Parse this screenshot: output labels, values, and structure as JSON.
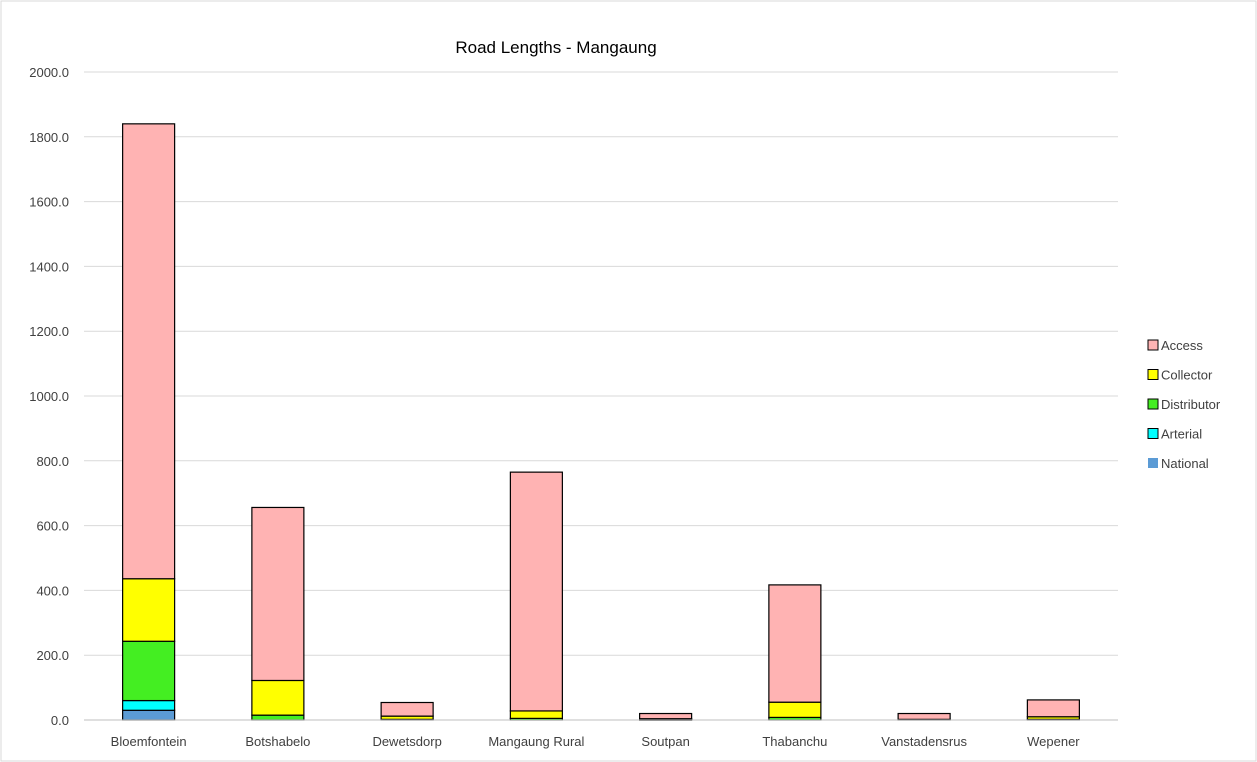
{
  "chart_data": {
    "type": "bar",
    "stacked": true,
    "title": "Road Lengths - Mangaung",
    "xlabel": "",
    "ylabel": "",
    "ylim": [
      0,
      2000
    ],
    "yticks": [
      "0.0",
      "200.0",
      "400.0",
      "600.0",
      "800.0",
      "1000.0",
      "1200.0",
      "1400.0",
      "1600.0",
      "1800.0",
      "2000.0"
    ],
    "grid": true,
    "legend_position": "right",
    "categories": [
      "Bloemfontein",
      "Botshabelo",
      "Dewetsdorp",
      "Mangaung Rural",
      "Soutpan",
      "Thabanchu",
      "Vanstadensrus",
      "Wepener"
    ],
    "series": [
      {
        "name": "National",
        "color": "#5B9BD5",
        "values": [
          30,
          0,
          0,
          0,
          0,
          0,
          0,
          0
        ]
      },
      {
        "name": "Arterial",
        "color": "#00FFFF",
        "values": [
          30,
          0,
          0,
          0,
          0,
          0,
          0,
          0
        ]
      },
      {
        "name": "Distributor",
        "color": "#44EE22",
        "values": [
          183,
          15,
          2,
          5,
          1,
          8,
          0,
          2
        ]
      },
      {
        "name": "Collector",
        "color": "#FFFF00",
        "values": [
          193,
          107,
          10,
          23,
          3,
          47,
          2,
          8
        ]
      },
      {
        "name": "Access",
        "color": "#FFB3B3",
        "values": [
          1404,
          534,
          42,
          737,
          16,
          362,
          18,
          52
        ]
      }
    ]
  }
}
